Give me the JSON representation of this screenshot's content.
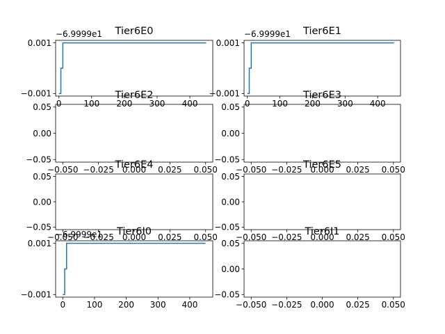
{
  "chart_data": [
    {
      "type": "line",
      "title": "Tier6E0",
      "offset_label": "−6.9999e1",
      "xlim": [
        -10,
        470
      ],
      "ylim": [
        -0.0011,
        0.0011
      ],
      "xticks": [
        0,
        100,
        200,
        300,
        400
      ],
      "xtick_labels": [
        "0",
        "100",
        "200",
        "300",
        "400"
      ],
      "yticks": [
        0.001,
        -0.001
      ],
      "ytick_labels": [
        "0.001",
        "−0.001"
      ],
      "color": "#1f77b4",
      "series": [
        {
          "name": "Tier6E0",
          "x": [
            0,
            0,
            6,
            6,
            12,
            12,
            450
          ],
          "y": [
            -0.001,
            -0.001,
            -0.001,
            0.0,
            0.0,
            0.001,
            0.001
          ]
        }
      ]
    },
    {
      "type": "line",
      "title": "Tier6E1",
      "offset_label": "−6.9999e1",
      "xlim": [
        -10,
        470
      ],
      "ylim": [
        -0.0011,
        0.0011
      ],
      "xticks": [
        0,
        100,
        200,
        300,
        400
      ],
      "xtick_labels": [
        "0",
        "100",
        "200",
        "300",
        "400"
      ],
      "yticks": [
        0.001,
        -0.001
      ],
      "ytick_labels": [
        "0.001",
        "−0.001"
      ],
      "color": "#1f77b4",
      "series": [
        {
          "name": "Tier6E1",
          "x": [
            0,
            0,
            6,
            6,
            12,
            12,
            450
          ],
          "y": [
            -0.001,
            -0.001,
            -0.001,
            0.0,
            0.0,
            0.001,
            0.001
          ]
        }
      ]
    },
    {
      "type": "line",
      "title": "Tier6E2",
      "offset_label": "",
      "xlim": [
        -0.055,
        0.055
      ],
      "ylim": [
        -0.055,
        0.055
      ],
      "xticks": [
        -0.05,
        -0.025,
        0.0,
        0.025,
        0.05
      ],
      "xtick_labels": [
        "−0.050",
        "−0.025",
        "0.000",
        "0.025",
        "0.050"
      ],
      "yticks": [
        0.05,
        0.0,
        -0.05
      ],
      "ytick_labels": [
        "0.05",
        "0.00",
        "−0.05"
      ],
      "color": "#1f77b4",
      "series": []
    },
    {
      "type": "line",
      "title": "Tier6E3",
      "offset_label": "",
      "xlim": [
        -0.055,
        0.055
      ],
      "ylim": [
        -0.055,
        0.055
      ],
      "xticks": [
        -0.05,
        -0.025,
        0.0,
        0.025,
        0.05
      ],
      "xtick_labels": [
        "−0.050",
        "−0.025",
        "0.000",
        "0.025",
        "0.050"
      ],
      "yticks": [
        0.05,
        0.0,
        -0.05
      ],
      "ytick_labels": [
        "0.05",
        "0.00",
        "−0.05"
      ],
      "color": "#1f77b4",
      "series": []
    },
    {
      "type": "line",
      "title": "Tier6E4",
      "offset_label": "",
      "xlim": [
        -0.055,
        0.055
      ],
      "ylim": [
        -0.055,
        0.055
      ],
      "xticks": [
        -0.05,
        -0.025,
        0.0,
        0.025,
        0.05
      ],
      "xtick_labels": [
        "−0.050",
        "−0.025",
        "0.000",
        "0.025",
        "0.050"
      ],
      "yticks": [
        0.05,
        0.0,
        -0.05
      ],
      "ytick_labels": [
        "0.05",
        "0.00",
        "−0.05"
      ],
      "color": "#1f77b4",
      "series": []
    },
    {
      "type": "line",
      "title": "Tier6E5",
      "offset_label": "",
      "xlim": [
        -0.055,
        0.055
      ],
      "ylim": [
        -0.055,
        0.055
      ],
      "xticks": [
        -0.05,
        -0.025,
        0.0,
        0.025,
        0.05
      ],
      "xtick_labels": [
        "−0.050",
        "−0.025",
        "0.000",
        "0.025",
        "0.050"
      ],
      "yticks": [
        0.05,
        0.0,
        -0.05
      ],
      "ytick_labels": [
        "0.05",
        "0.00",
        "−0.05"
      ],
      "color": "#1f77b4",
      "series": []
    },
    {
      "type": "line",
      "title": "Tier6I0",
      "offset_label": "−6.9999e1",
      "xlim": [
        -22.5,
        472.5
      ],
      "ylim": [
        -0.0011,
        0.0011
      ],
      "xticks": [
        0,
        100,
        200,
        300,
        400
      ],
      "xtick_labels": [
        "0",
        "100",
        "200",
        "300",
        "400"
      ],
      "yticks": [
        0.001,
        -0.001
      ],
      "ytick_labels": [
        "0.001",
        "−0.001"
      ],
      "color": "#1f77b4",
      "series": [
        {
          "name": "Tier6I0",
          "x": [
            0,
            0,
            6,
            6,
            12,
            12,
            450
          ],
          "y": [
            -0.001,
            -0.001,
            -0.001,
            0.0,
            0.0,
            0.001,
            0.001
          ]
        }
      ]
    },
    {
      "type": "line",
      "title": "Tier6I1",
      "offset_label": "",
      "xlim": [
        -0.055,
        0.055
      ],
      "ylim": [
        -0.055,
        0.055
      ],
      "xticks": [
        -0.05,
        -0.025,
        0.0,
        0.025,
        0.05
      ],
      "xtick_labels": [
        "−0.050",
        "−0.025",
        "0.000",
        "0.025",
        "0.050"
      ],
      "yticks": [
        0.05,
        0.0,
        -0.05
      ],
      "ytick_labels": [
        "0.05",
        "0.00",
        "−0.05"
      ],
      "color": "#1f77b4",
      "series": []
    }
  ]
}
